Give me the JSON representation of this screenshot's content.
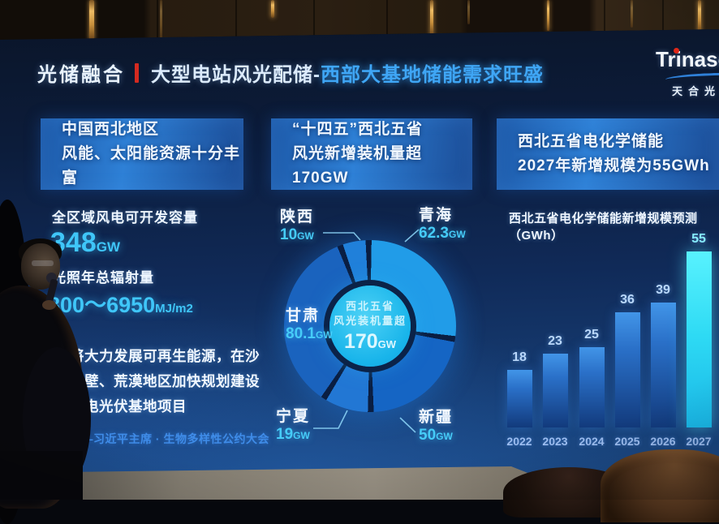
{
  "title": {
    "left": "光储融合",
    "main": "大型电站风光配储-",
    "highlight": "西部大基地储能需求旺盛"
  },
  "logo": {
    "brand": "Trinasolar",
    "cn": "天合光能"
  },
  "panels": {
    "left": {
      "header_line1": "中国西北地区",
      "header_line2": "风能、太阳能资源十分丰富",
      "stat1_label": "全区域风电可开发容量",
      "stat1_value": "348",
      "stat1_unit": "GW",
      "stat2_label": "光照年总辐射量",
      "stat2_value": "5800～6950",
      "stat2_unit": "MJ/m2",
      "quote_line1": "中国将大力发展可再生能源，在沙",
      "quote_line2": "漠、戈壁、荒漠地区加快规划建设",
      "quote_line3": "大型风电光伏基地项目",
      "quote_source": "——习近平主席 · 生物多样性公约大会"
    },
    "middle": {
      "header_line1": "“十四五”西北五省",
      "header_line2": "风光新增装机量超170GW",
      "center_line1": "西北五省",
      "center_line2": "风光装机量超",
      "center_value": "170",
      "center_unit": "GW"
    },
    "right": {
      "header_line1": "西北五省电化学储能",
      "header_line2": "2027年新增规模为55GWh",
      "chart_title": "西北五省电化学储能新增规模预测（GWh）"
    }
  },
  "chart_data": [
    {
      "type": "pie",
      "title": "“十四五”西北五省风光新增装机量超170GW",
      "labels": [
        "陕西",
        "青海",
        "新疆",
        "宁夏",
        "甘肃"
      ],
      "values": [
        10,
        62.3,
        50,
        19,
        80.1
      ],
      "unit": "GW",
      "center_text": "西北五省风光装机量超170GW",
      "legend_position": "around-callouts"
    },
    {
      "type": "bar",
      "title": "西北五省电化学储能新增规模预测（GWh）",
      "categories": [
        "2022",
        "2023",
        "2024",
        "2025",
        "2026",
        "2027"
      ],
      "values": [
        18,
        23,
        25,
        36,
        39,
        55
      ],
      "ylim": [
        0,
        60
      ],
      "highlight_index": 5,
      "grid": false
    }
  ],
  "colors": {
    "accent_blue": "#3fa6f5",
    "title_divider_red": "#d42a20",
    "logo_dot_red": "#e02818",
    "value_cyan": "#3fc6f8",
    "pie_gap": "#0a1e42",
    "pie_center": "#18b4ea",
    "pie_slice_colors": [
      "#2080da",
      "#219ce8",
      "#1565c4",
      "#2277d4",
      "#1a63be"
    ],
    "bar_normal": "#2a70c8",
    "bar_highlight": "#2edaf4"
  }
}
